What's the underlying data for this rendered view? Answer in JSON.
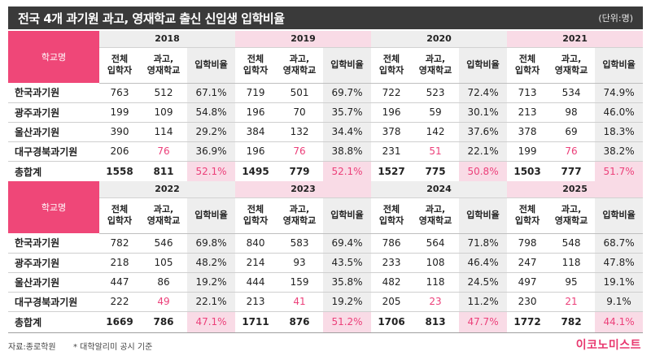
{
  "title": "전국 4개 과기원 과고, 영재학교 출신 신입생 입학비율",
  "unit": "(단위:명)",
  "header_school": "학교명",
  "sub_headers": {
    "total": "전체\n입학자",
    "science": "과고,\n영재학교",
    "rate": "입학비율"
  },
  "blocks": [
    {
      "years": [
        "2018",
        "2019",
        "2020",
        "2021"
      ],
      "rows": [
        {
          "name": "한국과기원",
          "cells": [
            [
              "763",
              "512",
              "67.1%"
            ],
            [
              "719",
              "501",
              "69.7%"
            ],
            [
              "722",
              "523",
              "72.4%"
            ],
            [
              "713",
              "534",
              "74.9%"
            ]
          ]
        },
        {
          "name": "광주과기원",
          "cells": [
            [
              "199",
              "109",
              "54.8%"
            ],
            [
              "196",
              "70",
              "35.7%"
            ],
            [
              "196",
              "59",
              "30.1%"
            ],
            [
              "213",
              "98",
              "46.0%"
            ]
          ]
        },
        {
          "name": "울산과기원",
          "cells": [
            [
              "390",
              "114",
              "29.2%"
            ],
            [
              "384",
              "132",
              "34.4%"
            ],
            [
              "378",
              "142",
              "37.6%"
            ],
            [
              "378",
              "69",
              "18.3%"
            ]
          ]
        },
        {
          "name": "대구경북과기원",
          "cells": [
            [
              "206",
              "76",
              "36.9%"
            ],
            [
              "196",
              "76",
              "38.8%"
            ],
            [
              "231",
              "51",
              "22.1%"
            ],
            [
              "199",
              "76",
              "38.2%"
            ]
          ]
        }
      ],
      "total": {
        "name": "총합계",
        "cells": [
          [
            "1558",
            "811",
            "52.1%"
          ],
          [
            "1495",
            "779",
            "52.1%"
          ],
          [
            "1527",
            "775",
            "50.8%"
          ],
          [
            "1503",
            "777",
            "51.7%"
          ]
        ]
      }
    },
    {
      "years": [
        "2022",
        "2023",
        "2024",
        "2025"
      ],
      "rows": [
        {
          "name": "한국과기원",
          "cells": [
            [
              "782",
              "546",
              "69.8%"
            ],
            [
              "840",
              "583",
              "69.4%"
            ],
            [
              "786",
              "564",
              "71.8%"
            ],
            [
              "798",
              "548",
              "68.7%"
            ]
          ]
        },
        {
          "name": "광주과기원",
          "cells": [
            [
              "218",
              "105",
              "48.2%"
            ],
            [
              "214",
              "93",
              "43.5%"
            ],
            [
              "233",
              "108",
              "46.4%"
            ],
            [
              "247",
              "118",
              "47.8%"
            ]
          ]
        },
        {
          "name": "울산과기원",
          "cells": [
            [
              "447",
              "86",
              "19.2%"
            ],
            [
              "444",
              "159",
              "35.8%"
            ],
            [
              "482",
              "118",
              "24.5%"
            ],
            [
              "497",
              "95",
              "19.1%"
            ]
          ]
        },
        {
          "name": "대구경북과기원",
          "cells": [
            [
              "222",
              "49",
              "22.1%"
            ],
            [
              "213",
              "41",
              "19.2%"
            ],
            [
              "205",
              "23",
              "11.2%"
            ],
            [
              "230",
              "21",
              "9.1%"
            ]
          ]
        }
      ],
      "total": {
        "name": "총합계",
        "cells": [
          [
            "1669",
            "786",
            "47.1%"
          ],
          [
            "1711",
            "876",
            "51.2%"
          ],
          [
            "1706",
            "813",
            "47.7%"
          ],
          [
            "1772",
            "782",
            "44.1%"
          ]
        ]
      }
    }
  ],
  "footer": {
    "source": "자료:종로학원",
    "note": "* 대학알리미 공시 기준",
    "brand": "이코노미스트"
  },
  "colors": {
    "accent": "#ef4778",
    "highlight_text": "#ec407a",
    "title_bg": "#3a3a3a",
    "gray_band": "#eeeeee",
    "pink_band": "#f9dbe6"
  }
}
